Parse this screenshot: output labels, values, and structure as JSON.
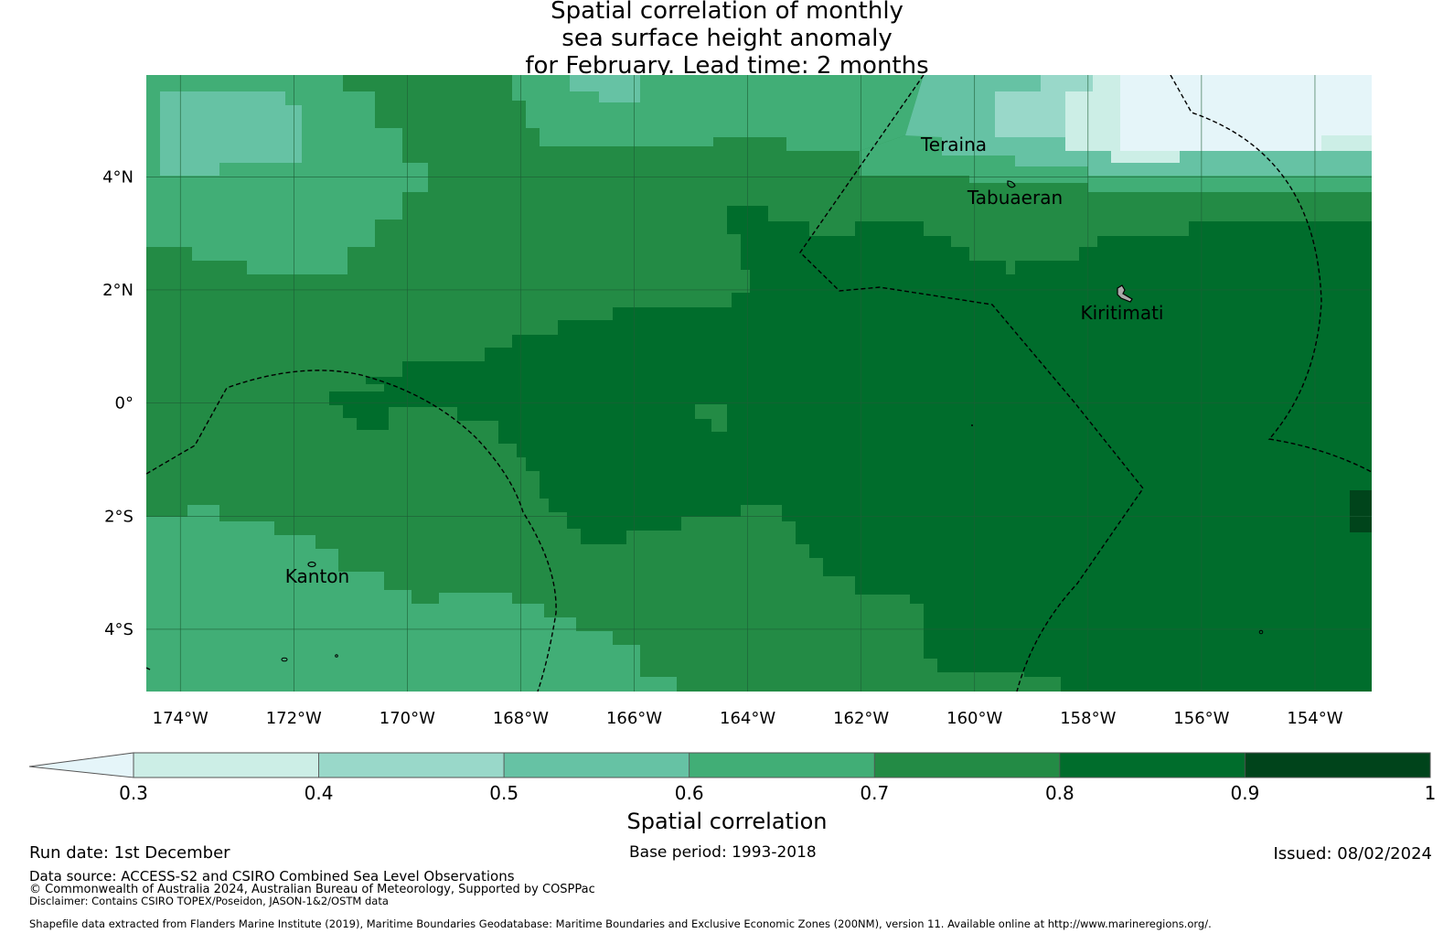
{
  "title": {
    "line1": "Spatial correlation of monthly",
    "line2": "sea surface height anomaly",
    "line3": "for February. Lead time: 2 months"
  },
  "map": {
    "lon_range": [
      -174.6,
      -153.0
    ],
    "lat_range": [
      -5.1,
      5.8
    ],
    "lon_ticks": [
      {
        "value": -174,
        "label": "174°W"
      },
      {
        "value": -172,
        "label": "172°W"
      },
      {
        "value": -170,
        "label": "170°W"
      },
      {
        "value": -168,
        "label": "168°W"
      },
      {
        "value": -166,
        "label": "166°W"
      },
      {
        "value": -164,
        "label": "164°W"
      },
      {
        "value": -162,
        "label": "162°W"
      },
      {
        "value": -160,
        "label": "160°W"
      },
      {
        "value": -158,
        "label": "158°W"
      },
      {
        "value": -156,
        "label": "156°W"
      },
      {
        "value": -154,
        "label": "154°W"
      }
    ],
    "lat_ticks": [
      {
        "value": 4,
        "label": "4°N"
      },
      {
        "value": 2,
        "label": "2°N"
      },
      {
        "value": 0,
        "label": "0°"
      },
      {
        "value": -2,
        "label": "2°S"
      },
      {
        "value": -4,
        "label": "4°S"
      }
    ],
    "places": [
      {
        "name": "Teraina",
        "lon": -160.8,
        "lat": 4.6
      },
      {
        "name": "Tabuaeran",
        "lon": -159.3,
        "lat": 3.65
      },
      {
        "name": "Kiritimati",
        "lon": -157.4,
        "lat": 1.6
      },
      {
        "name": "Kanton",
        "lon": -171.6,
        "lat": -3.1
      }
    ],
    "regions": [
      {
        "name": "corr-0.3-0.4",
        "value": 0.35,
        "color": "#e5f5f9"
      },
      {
        "name": "corr-0.4-0.5",
        "value": 0.45,
        "color": "#cceee6"
      },
      {
        "name": "corr-0.5-0.6",
        "value": 0.55,
        "color": "#99d8c9"
      },
      {
        "name": "corr-0.6-0.7",
        "value": 0.65,
        "color": "#66c2a4"
      },
      {
        "name": "corr-0.7-0.8",
        "value": 0.75,
        "color": "#41ae76"
      },
      {
        "name": "corr-0.8-0.9",
        "value": 0.85,
        "color": "#238b45"
      },
      {
        "name": "corr-0.9-1.0",
        "value": 0.95,
        "color": "#006d2c"
      }
    ]
  },
  "colorbar": {
    "label": "Spatial correlation",
    "ticks": [
      "0.3",
      "0.4",
      "0.5",
      "0.6",
      "0.7",
      "0.8",
      "0.9",
      "1"
    ],
    "extend_color": "#e5f5f9",
    "colors": [
      "#cceee6",
      "#99d8c9",
      "#66c2a4",
      "#41ae76",
      "#238b45",
      "#006d2c",
      "#00441b"
    ]
  },
  "footer": {
    "run_date": "Run date: 1st December",
    "base_period": "Base period: 1993-2018",
    "issued": "Issued: 08/02/2024",
    "data_source": "Data source: ACCESS-S2 and CSIRO Combined Sea Level Observations",
    "copyright": "© Commonwealth of Australia 2024, Australian Bureau of Meteorology, Supported by COSPPac",
    "disclaimer": "Disclaimer: Contains CSIRO TOPEX/Poseidon, JASON-1&2/OSTM data",
    "shapefile": "Shapefile data extracted from Flanders Marine Institute (2019), Maritime Boundaries Geodatabase: Maritime Boundaries and Exclusive Economic Zones (200NM), version 11. Available online at http://www.marineregions.org/."
  }
}
